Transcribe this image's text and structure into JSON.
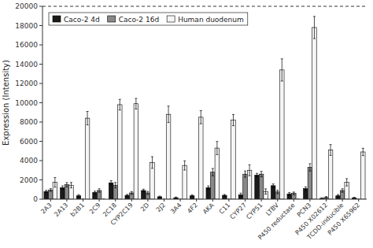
{
  "chart_data": {
    "type": "bar",
    "categories": [
      "2A3",
      "2A13",
      "b2B1",
      "2C9",
      "2C18",
      "CYP2C19",
      "2D",
      "2J2",
      "3A4",
      "4F2",
      "AKA",
      "C11",
      "CYP27",
      "CYP51",
      "LTBV",
      "P450 reductase",
      "PCN3",
      "P450 X02612",
      "TCDD-inducible",
      "P450 X65962"
    ],
    "series": [
      {
        "name": "Caco-2 4d",
        "color": "#1a1a1a",
        "values": [
          800,
          1200,
          350,
          700,
          1700,
          400,
          900,
          250,
          150,
          350,
          1200,
          400,
          450,
          2500,
          1400,
          550,
          1100,
          80,
          350,
          130
        ],
        "errors": [
          120,
          180,
          120,
          130,
          220,
          90,
          140,
          70,
          70,
          90,
          180,
          90,
          180,
          180,
          180,
          140,
          180,
          70,
          130,
          70
        ]
      },
      {
        "name": "Caco-2 16d",
        "color": "#888888",
        "values": [
          950,
          1500,
          0,
          900,
          1450,
          650,
          650,
          0,
          0,
          0,
          2800,
          0,
          2600,
          2600,
          750,
          600,
          3300,
          180,
          900,
          0
        ],
        "errors": [
          140,
          220,
          0,
          180,
          280,
          140,
          160,
          0,
          0,
          0,
          380,
          0,
          320,
          280,
          180,
          140,
          380,
          90,
          180,
          0
        ]
      },
      {
        "name": "Human duodenum",
        "color": "#f5f5f5",
        "values": [
          1750,
          1450,
          8400,
          0,
          9800,
          9900,
          3800,
          8800,
          3500,
          8500,
          5300,
          8200,
          3000,
          800,
          13400,
          0,
          17800,
          5100,
          1750,
          4900
        ],
        "errors": [
          500,
          280,
          700,
          0,
          550,
          550,
          600,
          850,
          480,
          680,
          680,
          580,
          570,
          270,
          1150,
          0,
          1150,
          560,
          380,
          380
        ]
      }
    ],
    "ylabel": "Expression (Intensity)",
    "ylim": [
      0,
      20000
    ],
    "yticks": [
      0,
      2000,
      4000,
      6000,
      8000,
      10000,
      12000,
      14000,
      16000,
      18000,
      20000
    ],
    "hline": {
      "value": 20000,
      "line_style": "dashed"
    },
    "legend": "upper left",
    "grid": false
  }
}
